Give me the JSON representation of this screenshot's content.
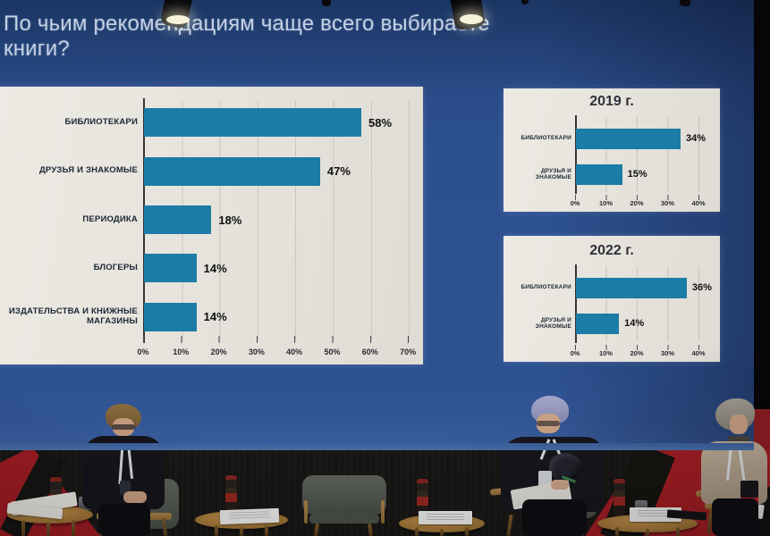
{
  "slide": {
    "title": "По чьим рекомендациям чаще всего выбираете книги?"
  },
  "chart_data": [
    {
      "type": "bar",
      "orientation": "horizontal",
      "title": "",
      "categories": [
        "БИБЛИОТЕКАРИ",
        "ДРУЗЬЯ И ЗНАКОМЫЕ",
        "ПЕРИОДИКА",
        "БЛОГЕРЫ",
        "ИЗДАТЕЛЬСТВА И КНИЖНЫЕ МАГАЗИНЫ"
      ],
      "values": [
        58,
        47,
        18,
        14,
        14
      ],
      "value_labels": [
        "58%",
        "47%",
        "18%",
        "14%",
        "14%"
      ],
      "xlim": [
        0,
        70
      ],
      "xticks": [
        "0%",
        "10%",
        "20%",
        "30%",
        "40%",
        "50%",
        "60%",
        "70%"
      ],
      "grid": true,
      "legend": "none",
      "bar_color": "#1b7ca6"
    },
    {
      "type": "bar",
      "orientation": "horizontal",
      "title": "2019 г.",
      "categories": [
        "БИБЛИОТЕКАРИ",
        "ДРУЗЬЯ И ЗНАКОМЫЕ"
      ],
      "values": [
        34,
        15
      ],
      "value_labels": [
        "34%",
        "15%"
      ],
      "xlim": [
        0,
        40
      ],
      "xticks": [
        "0%",
        "10%",
        "20%",
        "30%",
        "40%"
      ],
      "grid": true,
      "legend": "none",
      "bar_color": "#1b7ca6"
    },
    {
      "type": "bar",
      "orientation": "horizontal",
      "title": "2022 г.",
      "categories": [
        "БИБЛИОТЕКАРИ",
        "ДРУЗЬЯ И ЗНАКОМЫЕ"
      ],
      "values": [
        36,
        14
      ],
      "value_labels": [
        "36%",
        "14%"
      ],
      "xlim": [
        0,
        40
      ],
      "xticks": [
        "0%",
        "10%",
        "20%",
        "30%",
        "40%"
      ],
      "grid": true,
      "legend": "none",
      "bar_color": "#1b7ca6"
    }
  ],
  "colors": {
    "screen_blue": "#2d5190",
    "screen_blue_dark": "#1b3664",
    "bar_teal": "#1b7ca6",
    "panel_bg": "#e8e5df",
    "wall_red": "#9e1c22",
    "wall_black": "#171614",
    "wood": "#a97c3e"
  }
}
